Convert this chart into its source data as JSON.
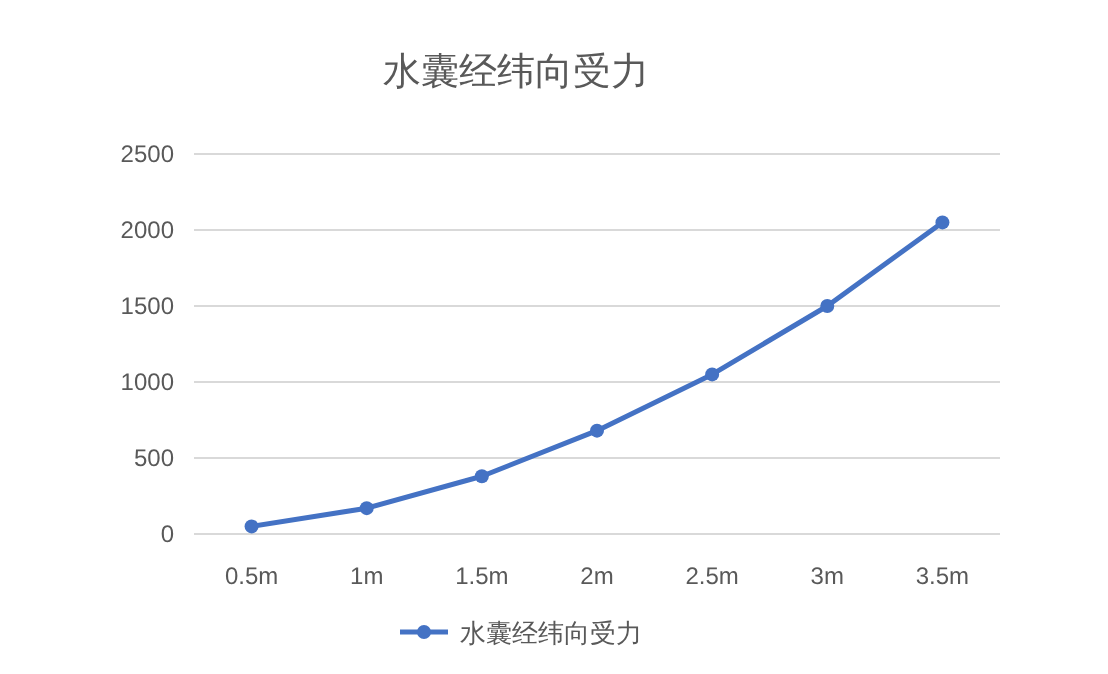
{
  "chart_data": {
    "type": "line",
    "title": "水囊经纬向受力",
    "categories": [
      "0.5m",
      "1m",
      "1.5m",
      "2m",
      "2.5m",
      "3m",
      "3.5m"
    ],
    "series": [
      {
        "name": "水囊经纬向受力",
        "color": "#4472c4",
        "values": [
          50,
          170,
          380,
          680,
          1050,
          1500,
          2050
        ]
      }
    ],
    "ylim": [
      0,
      2500
    ],
    "yticks": [
      0,
      500,
      1000,
      1500,
      2000,
      2500
    ],
    "grid": "y",
    "legend": "bottom",
    "marker": "circle",
    "line_style": "solid"
  }
}
